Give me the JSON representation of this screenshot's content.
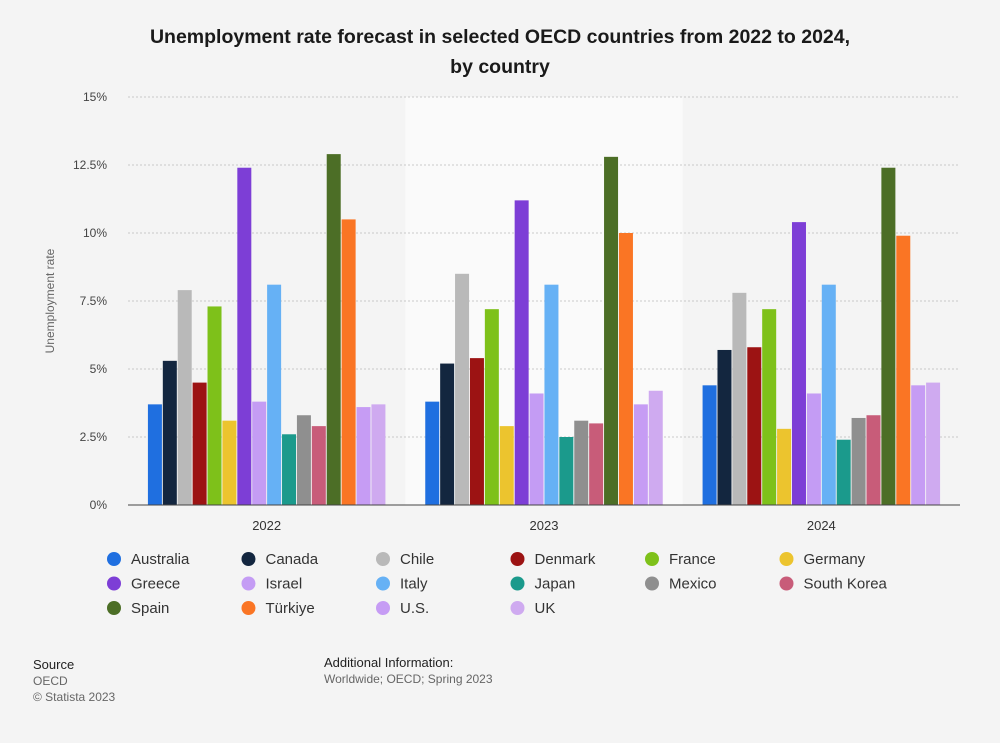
{
  "chart_data": {
    "type": "bar",
    "title": "Unemployment rate forecast in selected OECD countries from 2022 to 2024, by country",
    "title_lines": [
      "Unemployment rate forecast in selected OECD countries from 2022 to 2024,",
      "by country"
    ],
    "xlabel": "",
    "ylabel": "Unemployment rate",
    "ylim": [
      0,
      15
    ],
    "yticks": [
      {
        "value": 0,
        "label": "0%"
      },
      {
        "value": 2.5,
        "label": "2.5%"
      },
      {
        "value": 5,
        "label": "5%"
      },
      {
        "value": 7.5,
        "label": "7.5%"
      },
      {
        "value": 10,
        "label": "10%"
      },
      {
        "value": 12.5,
        "label": "12.5%"
      },
      {
        "value": 15,
        "label": "15%"
      }
    ],
    "categories": [
      "2022",
      "2023",
      "2024"
    ],
    "highlighted_category": "2023",
    "legend_position": "bottom",
    "series": [
      {
        "name": "Australia",
        "color": "#1f6fe0",
        "values": [
          3.7,
          3.8,
          4.4
        ]
      },
      {
        "name": "Canada",
        "color": "#13263f",
        "values": [
          5.3,
          5.2,
          5.7
        ]
      },
      {
        "name": "Chile",
        "color": "#b9b9b9",
        "values": [
          7.9,
          8.5,
          7.8
        ]
      },
      {
        "name": "Denmark",
        "color": "#9c1313",
        "values": [
          4.5,
          5.4,
          5.8
        ]
      },
      {
        "name": "France",
        "color": "#7ec11a",
        "values": [
          7.3,
          7.2,
          7.2
        ]
      },
      {
        "name": "Germany",
        "color": "#ecc42e",
        "values": [
          3.1,
          2.9,
          2.8
        ]
      },
      {
        "name": "Greece",
        "color": "#7d3ed6",
        "values": [
          12.4,
          11.2,
          10.4
        ]
      },
      {
        "name": "Israel",
        "color": "#c49cf4",
        "values": [
          3.8,
          4.1,
          4.1
        ]
      },
      {
        "name": "Italy",
        "color": "#66b1f5",
        "values": [
          8.1,
          8.1,
          8.1
        ]
      },
      {
        "name": "Japan",
        "color": "#1b9a8c",
        "values": [
          2.6,
          2.5,
          2.4
        ]
      },
      {
        "name": "Mexico",
        "color": "#8f8f8f",
        "values": [
          3.3,
          3.1,
          3.2
        ]
      },
      {
        "name": "South Korea",
        "color": "#c85c79",
        "values": [
          2.9,
          3.0,
          3.3
        ]
      },
      {
        "name": "Spain",
        "color": "#4c6e26",
        "values": [
          12.9,
          12.8,
          12.4
        ]
      },
      {
        "name": "Türkiye",
        "color": "#fa7524",
        "values": [
          10.5,
          10.0,
          9.9
        ]
      },
      {
        "name": "U.S.",
        "color": "#c69cf4",
        "values": [
          3.6,
          3.7,
          4.4
        ]
      },
      {
        "name": "UK",
        "color": "#cfaaf0",
        "values": [
          3.7,
          4.2,
          4.5
        ]
      }
    ]
  },
  "footer": {
    "source_heading": "Source",
    "source_value": "OECD",
    "copyright": "© Statista 2023",
    "additional_heading": "Additional Information:",
    "additional_value": "Worldwide; OECD; Spring 2023"
  }
}
